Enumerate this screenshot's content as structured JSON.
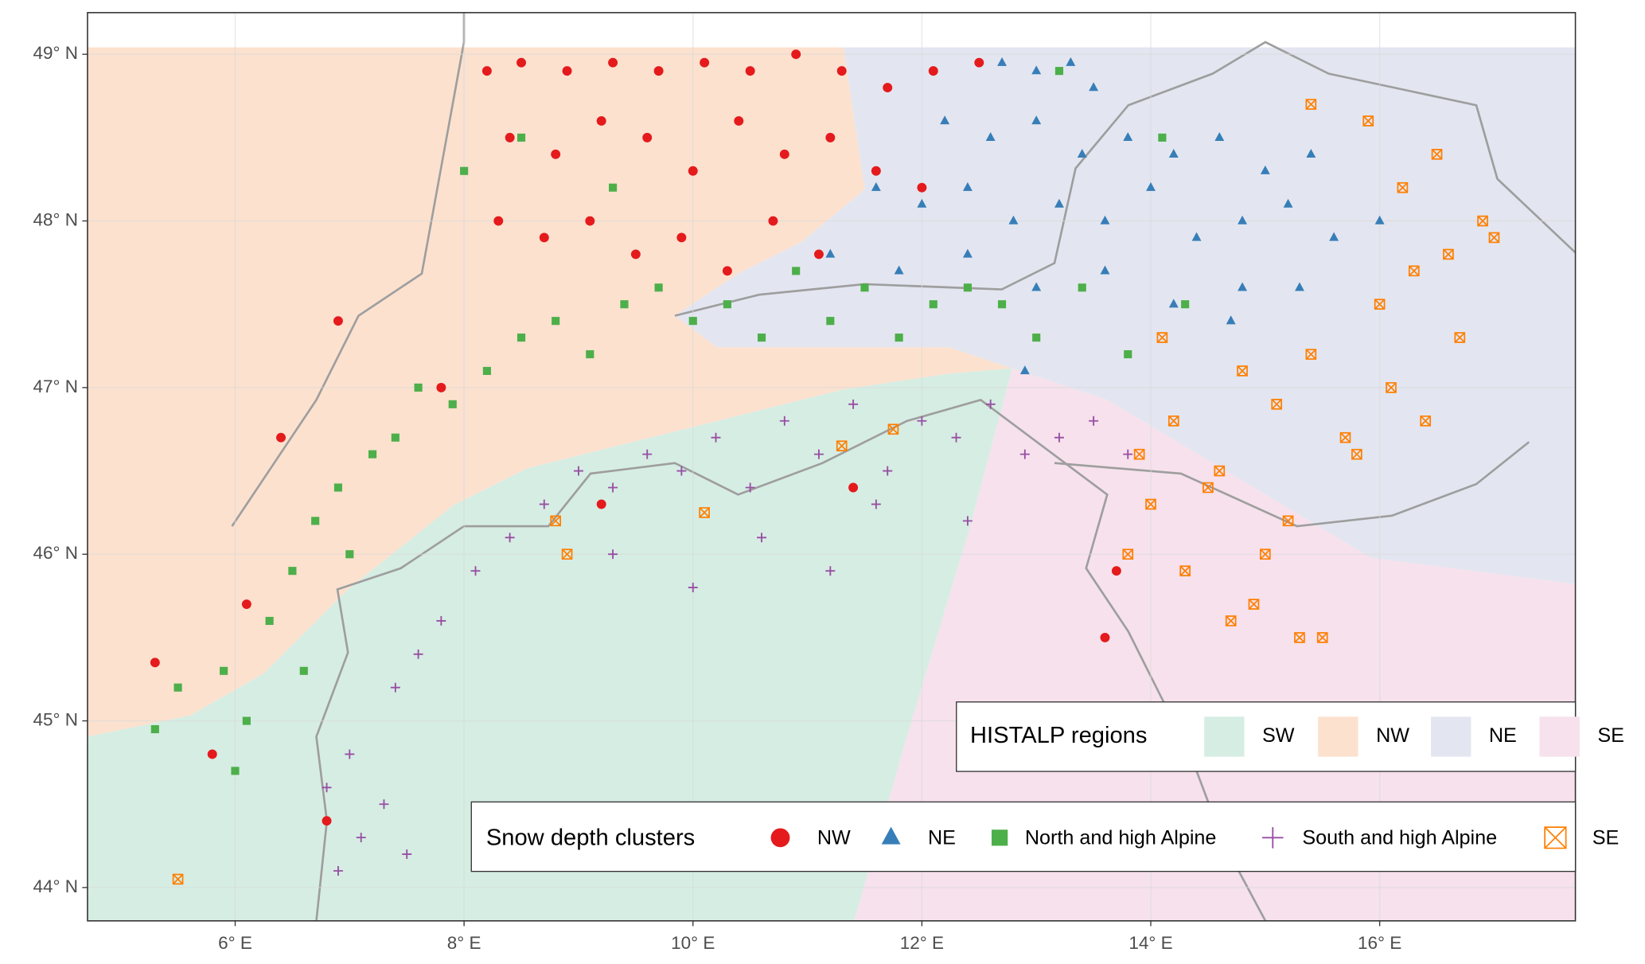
{
  "chart_data": {
    "type": "scatter",
    "xlim": [
      4.71,
      17.71
    ],
    "ylim": [
      43.8,
      49.25
    ],
    "xticks": [
      {
        "value": 6,
        "label": "6° E"
      },
      {
        "value": 8,
        "label": "8° E"
      },
      {
        "value": 10,
        "label": "10° E"
      },
      {
        "value": 12,
        "label": "12° E"
      },
      {
        "value": 14,
        "label": "14° E"
      },
      {
        "value": 16,
        "label": "16° E"
      }
    ],
    "yticks": [
      {
        "value": 44,
        "label": "44° N"
      },
      {
        "value": 45,
        "label": "45° N"
      },
      {
        "value": 46,
        "label": "46° N"
      },
      {
        "value": 47,
        "label": "47° N"
      },
      {
        "value": 48,
        "label": "48° N"
      },
      {
        "value": 49,
        "label": "49° N"
      }
    ],
    "grid": true,
    "regions_legend_title": "HISTALP regions",
    "regions": [
      {
        "name": "SW",
        "color": "#d6ede3"
      },
      {
        "name": "NW",
        "color": "#fce1cf"
      },
      {
        "name": "NE",
        "color": "#e3e6f0"
      },
      {
        "name": "SE",
        "color": "#f6e1ec"
      }
    ],
    "legend_title": "Snow depth clusters",
    "series": [
      {
        "name": "NW",
        "color": "#e41a1c",
        "marker": "circle",
        "x": [
          8.2,
          8.5,
          8.9,
          9.3,
          9.7,
          10.1,
          10.5,
          10.9,
          11.3,
          11.7,
          12.1,
          12.5,
          8.4,
          8.8,
          9.2,
          9.6,
          10.0,
          10.4,
          10.8,
          11.2,
          11.6,
          12.0,
          8.3,
          8.7,
          9.1,
          9.5,
          9.9,
          10.3,
          10.7,
          11.1,
          5.3,
          5.8,
          6.1,
          6.4,
          6.8,
          6.9,
          7.8,
          9.2,
          11.4,
          13.7,
          13.6
        ],
        "values": [
          48.9,
          48.95,
          48.9,
          48.95,
          48.9,
          48.95,
          48.9,
          49.0,
          48.9,
          48.8,
          48.9,
          48.95,
          48.5,
          48.4,
          48.6,
          48.5,
          48.3,
          48.6,
          48.4,
          48.5,
          48.3,
          48.2,
          48.0,
          47.9,
          48.0,
          47.8,
          47.9,
          47.7,
          48.0,
          47.8,
          45.35,
          44.8,
          45.7,
          46.7,
          44.4,
          47.4,
          47.0,
          46.3,
          46.4,
          45.9,
          45.5
        ]
      },
      {
        "name": "NE",
        "color": "#377eb8",
        "marker": "triangle",
        "x": [
          12.7,
          13.0,
          13.3,
          13.5,
          12.2,
          12.6,
          13.0,
          13.4,
          13.8,
          14.2,
          14.6,
          15.0,
          15.4,
          11.6,
          12.0,
          12.4,
          12.8,
          13.2,
          13.6,
          14.0,
          14.4,
          14.8,
          15.2,
          15.6,
          16.0,
          11.2,
          11.8,
          12.4,
          13.0,
          13.6,
          14.2,
          14.8,
          15.3,
          14.7,
          12.9
        ],
        "values": [
          48.95,
          48.9,
          48.95,
          48.8,
          48.6,
          48.5,
          48.6,
          48.4,
          48.5,
          48.4,
          48.5,
          48.3,
          48.4,
          48.2,
          48.1,
          48.2,
          48.0,
          48.1,
          48.0,
          48.2,
          47.9,
          48.0,
          48.1,
          47.9,
          48.0,
          47.8,
          47.7,
          47.8,
          47.6,
          47.7,
          47.5,
          47.6,
          47.6,
          47.4,
          47.1
        ]
      },
      {
        "name": "North and high Alpine",
        "color": "#4daf4a",
        "marker": "square",
        "x": [
          5.3,
          5.5,
          5.9,
          6.1,
          6.3,
          6.5,
          6.7,
          6.9,
          7.0,
          7.2,
          7.4,
          7.6,
          7.9,
          8.2,
          8.5,
          8.8,
          9.1,
          9.4,
          9.7,
          10.0,
          10.3,
          10.6,
          10.9,
          11.2,
          11.5,
          11.8,
          12.1,
          12.4,
          12.7,
          13.0,
          13.4,
          13.8,
          14.3,
          8.0,
          8.5,
          9.3,
          13.2,
          14.1,
          6.0,
          6.6
        ],
        "values": [
          44.95,
          45.2,
          45.3,
          45.0,
          45.6,
          45.9,
          46.2,
          46.4,
          46.0,
          46.6,
          46.7,
          47.0,
          46.9,
          47.1,
          47.3,
          47.4,
          47.2,
          47.5,
          47.6,
          47.4,
          47.5,
          47.3,
          47.7,
          47.4,
          47.6,
          47.3,
          47.5,
          47.6,
          47.5,
          47.3,
          47.6,
          47.2,
          47.5,
          48.3,
          48.5,
          48.2,
          48.9,
          48.5,
          44.7,
          45.3
        ]
      },
      {
        "name": "South and high Alpine",
        "color": "#984ea3",
        "marker": "plus",
        "x": [
          6.9,
          7.1,
          7.3,
          7.5,
          7.0,
          7.4,
          7.8,
          8.1,
          8.4,
          8.7,
          9.0,
          9.3,
          9.6,
          9.9,
          10.2,
          10.5,
          10.8,
          11.1,
          11.4,
          11.7,
          12.0,
          12.3,
          12.6,
          12.9,
          13.2,
          13.5,
          13.8,
          10.0,
          10.6,
          11.2,
          11.6,
          7.6,
          12.4,
          9.3,
          6.8
        ],
        "values": [
          44.1,
          44.3,
          44.5,
          44.2,
          44.8,
          45.2,
          45.6,
          45.9,
          46.1,
          46.3,
          46.5,
          46.4,
          46.6,
          46.5,
          46.7,
          46.4,
          46.8,
          46.6,
          46.9,
          46.5,
          46.8,
          46.7,
          46.9,
          46.6,
          46.7,
          46.8,
          46.6,
          45.8,
          46.1,
          45.9,
          46.3,
          45.4,
          46.2,
          46.0,
          44.6
        ]
      },
      {
        "name": "SE",
        "color": "#ff7f00",
        "marker": "crossed-square",
        "x": [
          13.8,
          14.0,
          14.3,
          14.6,
          14.9,
          15.2,
          15.5,
          15.8,
          16.1,
          16.4,
          16.7,
          13.9,
          14.2,
          14.5,
          14.8,
          15.1,
          15.4,
          15.7,
          16.0,
          16.3,
          16.6,
          16.9,
          17.0,
          16.5,
          15.9,
          15.4,
          16.2,
          14.7,
          15.0,
          15.3,
          14.1,
          5.5,
          8.9,
          8.8,
          10.1,
          11.3,
          11.75
        ],
        "values": [
          46.0,
          46.3,
          45.9,
          46.5,
          45.7,
          46.2,
          45.5,
          46.6,
          47.0,
          46.8,
          47.3,
          46.6,
          46.8,
          46.4,
          47.1,
          46.9,
          47.2,
          46.7,
          47.5,
          47.7,
          47.8,
          48.0,
          47.9,
          48.4,
          48.6,
          48.7,
          48.2,
          45.6,
          46.0,
          45.5,
          47.3,
          44.05,
          46.0,
          46.2,
          46.25,
          46.65,
          46.75
        ]
      }
    ]
  }
}
